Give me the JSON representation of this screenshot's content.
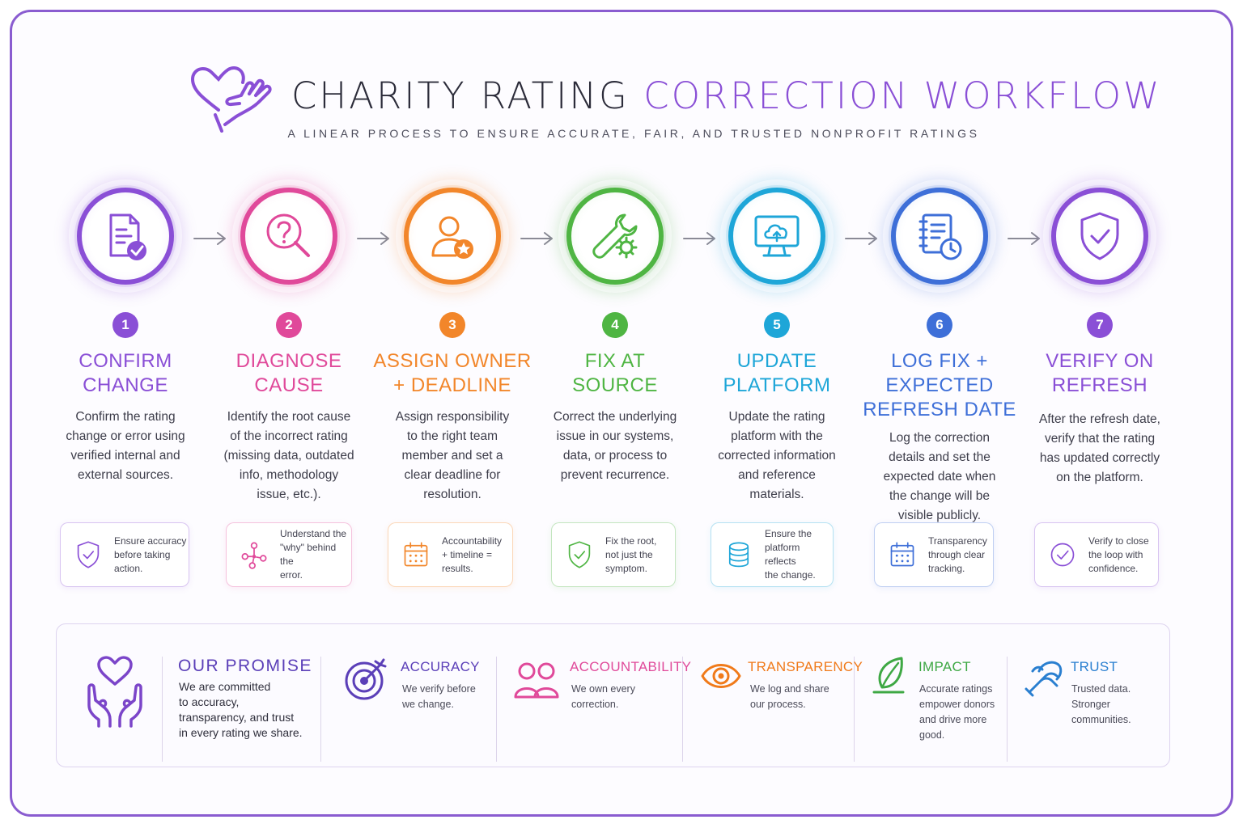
{
  "header": {
    "title_plain": "CHARITY RATING",
    "title_accent": "CORRECTION WORKFLOW",
    "subtitle": "A LINEAR PROCESS TO ENSURE ACCURATE, FAIR, AND TRUSTED NONPROFIT RATINGS",
    "logo_icon": "heart-in-hand-icon"
  },
  "steps": [
    {
      "number": "1",
      "title_line1": "CONFIRM",
      "title_line2": "CHANGE",
      "title_line3": "",
      "description": [
        "Confirm the rating",
        "change or error using",
        "verified internal and",
        "external sources."
      ],
      "icon": "document-check-icon",
      "color": "#8a4fd6",
      "card_icon": "shield-check-icon",
      "card_text": [
        "Ensure accuracy",
        "before taking",
        "action."
      ]
    },
    {
      "number": "2",
      "title_line1": "DIAGNOSE",
      "title_line2": "CAUSE",
      "title_line3": "",
      "description": [
        "Identify the root cause",
        "of the incorrect rating",
        "(missing data, outdated",
        "info, methodology",
        "issue, etc.)."
      ],
      "icon": "question-magnifier-icon",
      "color": "#e0499a",
      "card_icon": "network-nodes-icon",
      "card_text": [
        "Understand the",
        "\"why\" behind the",
        "error."
      ]
    },
    {
      "number": "3",
      "title_line1": "ASSIGN OWNER",
      "title_line2": "+ DEADLINE",
      "title_line3": "",
      "description": [
        "Assign responsibility",
        "to the right team",
        "member and set a",
        "clear deadline for",
        "resolution."
      ],
      "icon": "person-star-icon",
      "color": "#f2862a",
      "card_icon": "calendar-icon",
      "card_text": [
        "Accountability",
        "+ timeline =",
        "results."
      ]
    },
    {
      "number": "4",
      "title_line1": "FIX AT",
      "title_line2": "SOURCE",
      "title_line3": "",
      "description": [
        "Correct the underlying",
        "issue in our systems,",
        "data, or process to",
        "prevent recurrence."
      ],
      "icon": "wrench-gear-icon",
      "color": "#4fb543",
      "card_icon": "shield-check-icon",
      "card_text": [
        "Fix the root,",
        "not just the",
        "symptom."
      ]
    },
    {
      "number": "5",
      "title_line1": "UPDATE",
      "title_line2": "PLATFORM",
      "title_line3": "",
      "description": [
        "Update the rating",
        "platform with the",
        "corrected information",
        "and reference",
        "materials."
      ],
      "icon": "monitor-upload-icon",
      "color": "#1ea6d8",
      "card_icon": "database-icon",
      "card_text": [
        "Ensure the",
        "platform reflects",
        "the change."
      ]
    },
    {
      "number": "6",
      "title_line1": "LOG FIX +",
      "title_line2": "EXPECTED",
      "title_line3": "REFRESH DATE",
      "description": [
        "Log the correction",
        "details and set the",
        "expected date when",
        "the change will be",
        "visible publicly."
      ],
      "icon": "log-clock-icon",
      "color": "#3e6fd8",
      "card_icon": "calendar-icon",
      "card_text": [
        "Transparency",
        "through clear",
        "tracking."
      ]
    },
    {
      "number": "7",
      "title_line1": "VERIFY ON",
      "title_line2": "REFRESH",
      "title_line3": "",
      "description": [
        "After the refresh date,",
        "verify that the rating",
        "has updated correctly",
        "on the platform."
      ],
      "icon": "shield-check-icon",
      "color": "#8a4fd6",
      "card_icon": "circle-check-icon",
      "card_text": [
        "Verify to close",
        "the loop with",
        "confidence."
      ]
    }
  ],
  "promise": {
    "title": "OUR PROMISE",
    "text": [
      "We are committed",
      "to accuracy,",
      "transparency, and trust",
      "in every rating we share."
    ],
    "icon": "hands-heart-icon"
  },
  "values": [
    {
      "title": "ACCURACY",
      "text": [
        "We verify before",
        "we change."
      ],
      "icon": "target-icon",
      "color": "#5b3fb8"
    },
    {
      "title": "ACCOUNTABILITY",
      "text": [
        "We own every",
        "correction."
      ],
      "icon": "people-icon",
      "color": "#e0499a"
    },
    {
      "title": "TRANSPARENCY",
      "text": [
        "We log and share",
        "our process."
      ],
      "icon": "eye-icon",
      "color": "#f07a1a"
    },
    {
      "title": "IMPACT",
      "text": [
        "Accurate ratings",
        "empower donors",
        "and drive more",
        "good."
      ],
      "icon": "leaf-icon",
      "color": "#3ea844"
    },
    {
      "title": "TRUST",
      "text": [
        "Trusted data.",
        "Stronger",
        "communities."
      ],
      "icon": "handshake-icon",
      "color": "#2a7fd0"
    }
  ]
}
